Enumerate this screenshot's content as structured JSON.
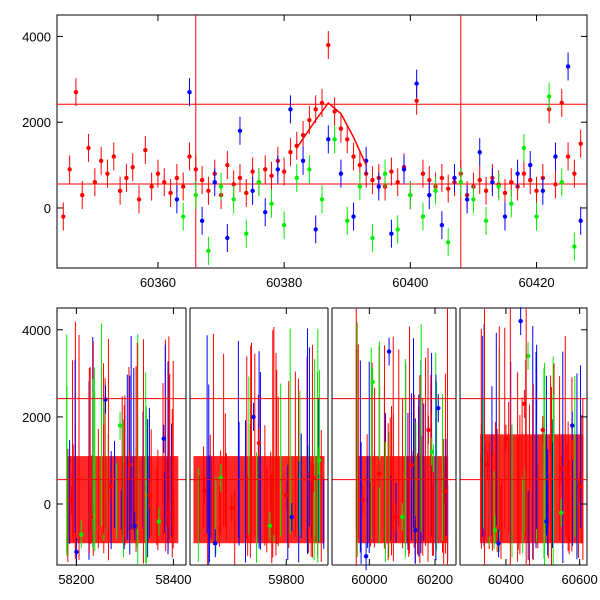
{
  "colors": {
    "red": "#ff0000",
    "green": "#00ee00",
    "blue": "#0000ff",
    "axes": "#000000"
  },
  "chart_data": [
    {
      "type": "scatter",
      "title": "",
      "xlabel": "",
      "ylabel": "",
      "xlim": [
        60344,
        60428
      ],
      "ylim": [
        -1400,
        4500
      ],
      "grid": false,
      "xticks": [
        60360,
        60380,
        60400,
        60420
      ],
      "yticks": [
        0,
        2000,
        4000
      ],
      "hlines": [
        560,
        2420
      ],
      "vlines": [
        60366,
        60408
      ],
      "trend": {
        "x": [
          60382,
          60385,
          60387,
          60389,
          60391,
          60393
        ],
        "y": [
          1400,
          2050,
          2450,
          2200,
          1650,
          1000
        ]
      },
      "series": [
        {
          "color": "red",
          "x": [
            60345,
            60346,
            60347,
            60348,
            60349,
            60350,
            60351,
            60352,
            60353,
            60354,
            60355,
            60356,
            60357,
            60358,
            60359,
            60360,
            60361,
            60362,
            60363,
            60364,
            60365,
            60366,
            60367,
            60368,
            60369,
            60370,
            60371,
            60372,
            60373,
            60374,
            60375,
            60376,
            60377,
            60378,
            60379,
            60380,
            60381,
            60382,
            60383,
            60384,
            60385,
            60386,
            60387,
            60388,
            60389,
            60390,
            60391,
            60392,
            60393,
            60394,
            60395,
            60396,
            60397,
            60398,
            60399,
            60400,
            60401,
            60402,
            60403,
            60404,
            60405,
            60406,
            60407,
            60408,
            60409,
            60410,
            60411,
            60412,
            60413,
            60414,
            60415,
            60416,
            60417,
            60418,
            60419,
            60420,
            60421,
            60422,
            60423,
            60424,
            60425,
            60426,
            60427
          ],
          "y": [
            -200,
            900,
            2700,
            300,
            1400,
            600,
            1100,
            800,
            1200,
            400,
            700,
            950,
            200,
            1350,
            500,
            800,
            600,
            350,
            700,
            500,
            1200,
            900,
            650,
            400,
            800,
            300,
            1000,
            550,
            700,
            350,
            850,
            600,
            900,
            750,
            1100,
            850,
            1300,
            1450,
            1700,
            2050,
            2300,
            2450,
            3800,
            2250,
            1850,
            1600,
            1200,
            1000,
            800,
            650,
            700,
            500,
            850,
            600,
            950,
            300,
            2500,
            800,
            650,
            500,
            700,
            450,
            600,
            800,
            300,
            500,
            650,
            400,
            700,
            550,
            350,
            600,
            500,
            800,
            650,
            400,
            700,
            2300,
            550,
            2450,
            1200,
            800,
            1500
          ]
        },
        {
          "color": "green",
          "x": [
            60364,
            60366,
            60368,
            60370,
            60372,
            60374,
            60376,
            60378,
            60380,
            60382,
            60384,
            60386,
            60388,
            60390,
            60392,
            60394,
            60396,
            60398,
            60400,
            60402,
            60404,
            60406,
            60408,
            60410,
            60412,
            60414,
            60416,
            60418,
            60420,
            60422,
            60424,
            60426
          ],
          "y": [
            -200,
            300,
            -1000,
            500,
            200,
            -600,
            600,
            100,
            -400,
            700,
            900,
            200,
            1600,
            -300,
            500,
            -700,
            800,
            -500,
            300,
            -200,
            400,
            -800,
            600,
            200,
            -300,
            500,
            100,
            1400,
            -200,
            2600,
            600,
            -900
          ]
        },
        {
          "color": "blue",
          "x": [
            60363,
            60365,
            60367,
            60369,
            60371,
            60373,
            60375,
            60377,
            60379,
            60381,
            60383,
            60385,
            60387,
            60389,
            60391,
            60393,
            60395,
            60397,
            60399,
            60401,
            60403,
            60405,
            60407,
            60409,
            60411,
            60413,
            60415,
            60417,
            60419,
            60421,
            60423,
            60425,
            60427
          ],
          "y": [
            200,
            2700,
            -300,
            600,
            -700,
            1800,
            400,
            -100,
            900,
            2300,
            1100,
            -500,
            1600,
            800,
            -200,
            1100,
            500,
            -600,
            900,
            2900,
            300,
            -400,
            700,
            200,
            1300,
            600,
            -200,
            800,
            1000,
            400,
            1200,
            3300,
            -300
          ]
        }
      ]
    },
    {
      "type": "scatter",
      "title": "",
      "xlabel": "",
      "ylabel": "",
      "ylim": [
        -1400,
        4500
      ],
      "grid": false,
      "yticks": [
        0,
        2000,
        4000
      ],
      "hlines": [
        560,
        2420
      ],
      "segments": [
        {
          "xlim": [
            58160,
            58430
          ],
          "xticks": [
            58200,
            58400
          ]
        },
        {
          "xlim": [
            59620,
            59880
          ],
          "xticks": [
            59800
          ]
        },
        {
          "xlim": [
            59880,
            60270
          ],
          "xticks": [
            60000,
            60200
          ]
        },
        {
          "xlim": [
            60270,
            60620
          ],
          "xticks": [
            60400,
            60600
          ]
        }
      ],
      "data_ranges": [
        [
          58180,
          58410
        ],
        [
          59630,
          59870
        ],
        [
          59960,
          60240
        ],
        [
          60330,
          60610
        ]
      ],
      "vlines": [
        59960,
        60238,
        60342,
        60412,
        60455
      ],
      "series": [
        {
          "color": "red",
          "x": [
            58190,
            58230,
            58270,
            58310,
            58350,
            58390,
            59650,
            59700,
            59750,
            59800,
            59850,
            59980,
            60030,
            60080,
            60130,
            60180,
            60230,
            60350,
            60400,
            60450,
            60500,
            60550,
            60600
          ],
          "y": [
            100,
            -300,
            400,
            900,
            200,
            -200,
            300,
            -100,
            1400,
            200,
            600,
            100,
            700,
            -300,
            900,
            1700,
            300,
            900,
            1500,
            2300,
            1700,
            800,
            400
          ]
        },
        {
          "color": "green",
          "x": [
            58210,
            58290,
            58370,
            59680,
            59770,
            59860,
            60010,
            60100,
            60190,
            60370,
            60460,
            60550
          ],
          "y": [
            -700,
            1800,
            -400,
            600,
            -500,
            1000,
            2800,
            -300,
            1200,
            -600,
            3400,
            -200
          ]
        },
        {
          "color": "blue",
          "x": [
            58200,
            58260,
            58320,
            58380,
            59670,
            59740,
            59810,
            59990,
            60060,
            60140,
            60210,
            60380,
            60440,
            60510,
            60580
          ],
          "y": [
            -1100,
            2400,
            -500,
            1500,
            -900,
            2000,
            -300,
            -1200,
            3500,
            -600,
            2200,
            -900,
            4200,
            -400,
            1800
          ]
        }
      ]
    }
  ]
}
